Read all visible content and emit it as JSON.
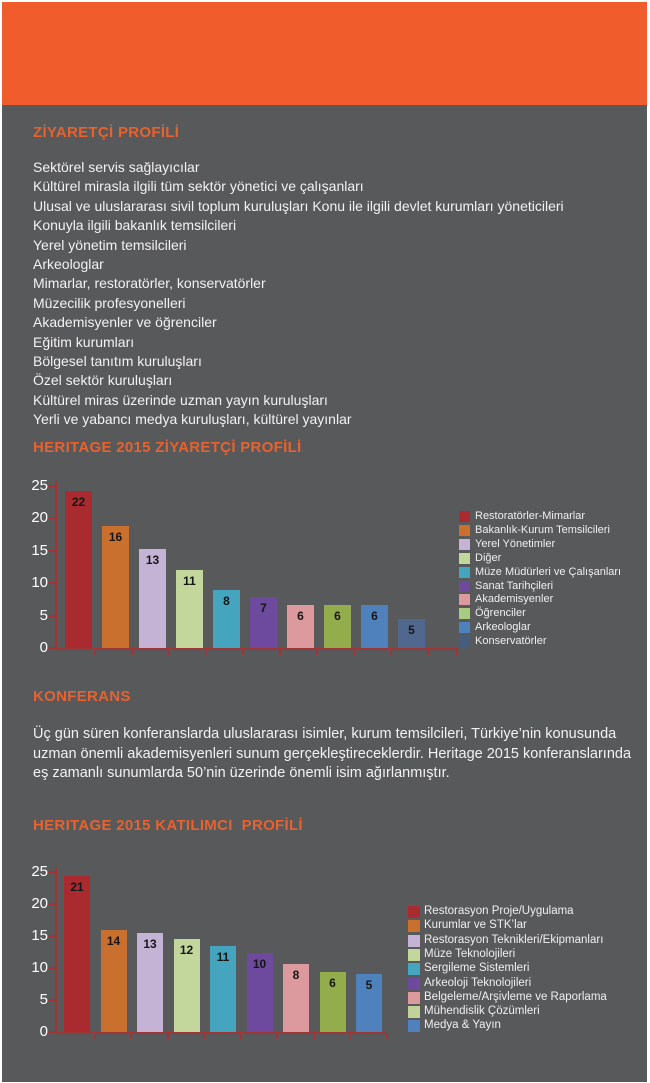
{
  "page": {
    "background_color": "#58595b",
    "band_color": "#f15c2c",
    "accent_color": "#e7622e"
  },
  "visitor_profile": {
    "heading": "ZİYARETÇİ PROFİLİ",
    "items": [
      "Sektörel servis sağlayıcılar",
      "Kültürel mirasla ilgili tüm sektör yönetici ve çalışanları",
      "Ulusal ve uluslararası sivil toplum kuruluşları Konu ile ilgili devlet kurumları yöneticileri",
      "Konuyla ilgili bakanlık temsilcileri",
      "Yerel yönetim temsilcileri",
      "Arkeologlar",
      "Mimarlar, restoratörler, konservatörler",
      "Müzecilik profesyonelleri",
      "Akademisyenler ve öğrenciler",
      "Eğitim kurumları",
      "Bölgesel tanıtım kuruluşları",
      "Özel sektör kuruluşları",
      "Kültürel miras üzerinde uzman yayın kuruluşları",
      "Yerli ve yabancı medya kuruluşları, kültürel yayınlar"
    ]
  },
  "konferans": {
    "heading": "KONFERANS",
    "body": "Üç gün süren konferanslarda uluslararası isimler, kurum temsilcileri, Türkiye’nin konusunda uzman önemli akademisyenleri sunum gerçekleştireceklerdir. Heritage 2015 konferanslarında eş zamanlı sunumlarda 50’nin üzerinde önemli isim ağırlanmıştır."
  },
  "chart_data": [
    {
      "type": "bar",
      "title": "HERITAGE 2015 ZİYARETÇİ PROFİLİ",
      "categories": [
        "Restoratörler-Mimarlar",
        "Bakanlık-Kurum Temsilcileri",
        "Yerel Yönetimler",
        "Diğer",
        "Müze Müdürleri ve Çalışanları",
        "Sanat Tarihçileri",
        "Akademisyenler",
        "Öğrenciler",
        "Arkeologlar",
        "Konservatörler"
      ],
      "values": [
        22,
        16,
        13,
        11,
        8,
        7,
        6,
        6,
        6,
        5
      ],
      "bar_heights_axis_units": [
        24.3,
        18.8,
        15.3,
        12.1,
        8.9,
        7.8,
        6.7,
        6.7,
        6.7,
        4.5
      ],
      "colors": [
        "#a92b2f",
        "#c9702f",
        "#c5b3d6",
        "#c3d69b",
        "#45a5bf",
        "#6d4a9d",
        "#dd9a9e",
        "#93ad4c",
        "#4f81bd",
        "#50688e"
      ],
      "legend_colors": [
        "#a92b2f",
        "#c9702f",
        "#c5b3d6",
        "#c3d69b",
        "#45a5bf",
        "#6d4a9d",
        "#dd9a9e",
        "#a9cb80",
        "#4f81bd",
        "#475d80"
      ],
      "xlabel": "",
      "ylabel": "",
      "ylim": [
        0,
        25
      ],
      "yticks": [
        0,
        5,
        10,
        15,
        20,
        25
      ],
      "grid": false,
      "legend_position": "right",
      "axis_color": "#a03537",
      "value_label_color": "#161616"
    },
    {
      "type": "bar",
      "title": "HERITAGE 2015 KATILIMCI  PROFİLİ",
      "categories": [
        "Restorasyon Proje/Uygulama",
        "Kurumlar ve STK’lar",
        "Restorasyon Teknikleri/Ekipmanları",
        "Müze Teknolojileri",
        "Sergileme Sistemleri",
        "Arkeoloji Teknolojileri",
        "Belgeleme/Arşivleme ve Raporlama",
        "Mühendislik Çözümleri",
        "Medya & Yayın"
      ],
      "values": [
        21,
        14,
        13,
        12,
        11,
        10,
        8,
        6,
        5
      ],
      "bar_heights_axis_units": [
        24.4,
        15.9,
        15.4,
        14.5,
        13.5,
        12.4,
        10.7,
        9.4,
        9.0
      ],
      "colors": [
        "#a92b2f",
        "#c9702f",
        "#c5b3d6",
        "#c3d69b",
        "#45a5bf",
        "#6d4a9d",
        "#dd9a9e",
        "#93ad4c",
        "#4f81bd"
      ],
      "legend_colors": [
        "#a92b2f",
        "#c9702f",
        "#c5b3d6",
        "#c3d69b",
        "#45a5bf",
        "#6d4a9d",
        "#dd9a9e",
        "#c0d29a",
        "#4f81bd"
      ],
      "xlabel": "",
      "ylabel": "",
      "ylim": [
        0,
        25
      ],
      "yticks": [
        0,
        5,
        10,
        15,
        20,
        25
      ],
      "grid": false,
      "legend_position": "right",
      "axis_color": "#a03537",
      "value_label_color": "#161616"
    }
  ]
}
